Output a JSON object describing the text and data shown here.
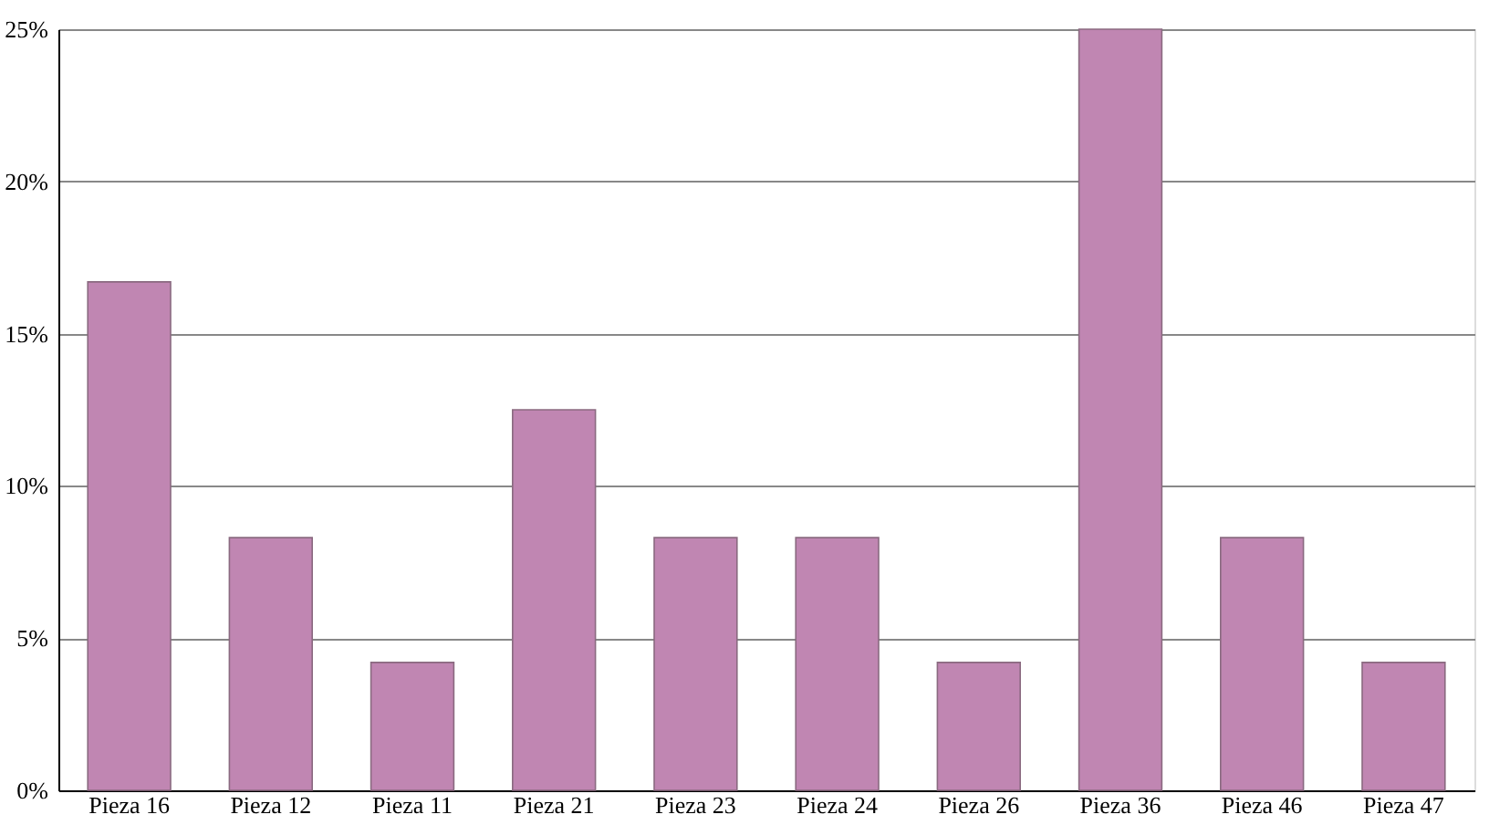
{
  "chart_data": {
    "type": "bar",
    "categories": [
      "Pieza 16",
      "Pieza 12",
      "Pieza 11",
      "Pieza 21",
      "Pieza 23",
      "Pieza 24",
      "Pieza 26",
      "Pieza 36",
      "Pieza 46",
      "Pieza 47"
    ],
    "values": [
      16.7,
      8.3,
      4.2,
      12.5,
      8.3,
      8.3,
      4.2,
      25,
      8.3,
      4.2
    ],
    "color": "#c086b2",
    "ylim": [
      0,
      25
    ],
    "yticks": [
      {
        "value": 0,
        "label": "0%"
      },
      {
        "value": 5,
        "label": "5%"
      },
      {
        "value": 10,
        "label": "10%"
      },
      {
        "value": 15,
        "label": "15%"
      },
      {
        "value": 20,
        "label": "20%"
      },
      {
        "value": 25,
        "label": "25%"
      }
    ],
    "grid": "y"
  }
}
